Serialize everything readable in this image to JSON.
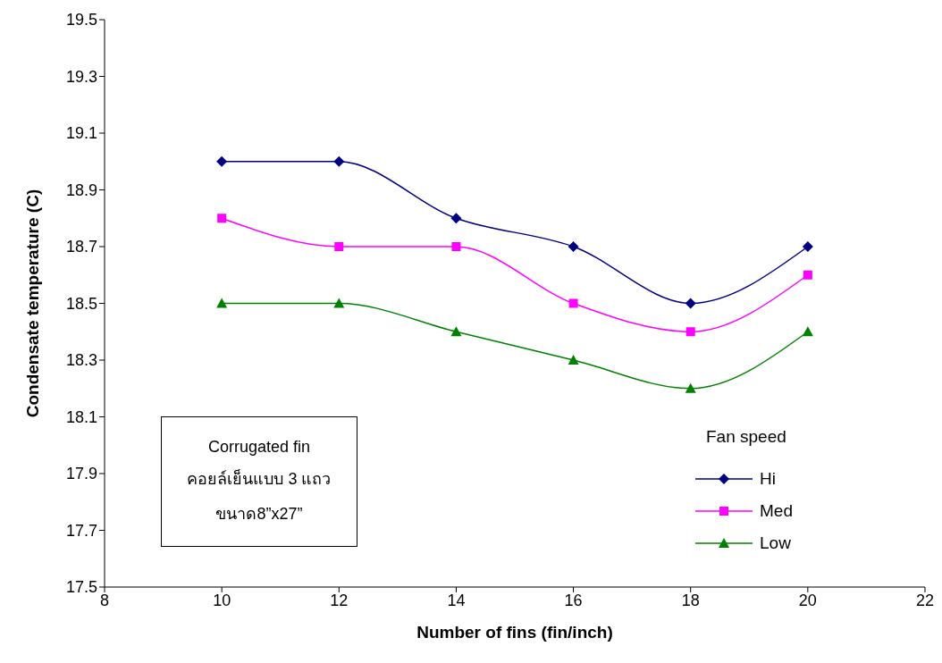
{
  "chart_data": {
    "type": "line",
    "xlabel": "Number of fins (fin/inch)",
    "ylabel": "Condensate temperature (C)",
    "legend_title": "Fan speed",
    "legend": "bottom right",
    "grid": false,
    "x": [
      10,
      12,
      14,
      16,
      18,
      20
    ],
    "xlim": [
      8,
      22
    ],
    "xticks": [
      8,
      10,
      12,
      14,
      16,
      18,
      20,
      22
    ],
    "ylim": [
      17.5,
      19.5
    ],
    "yticks": [
      17.5,
      17.7,
      17.9,
      18.1,
      18.3,
      18.5,
      18.7,
      18.9,
      19.1,
      19.3,
      19.5
    ],
    "series": [
      {
        "name": "Hi",
        "color": "#000080",
        "marker": "diamond",
        "values": [
          19.0,
          19.0,
          18.8,
          18.7,
          18.5,
          18.7
        ]
      },
      {
        "name": "Med",
        "color": "#ff00ff",
        "marker": "square",
        "values": [
          18.8,
          18.7,
          18.7,
          18.5,
          18.4,
          18.6
        ]
      },
      {
        "name": "Low",
        "color": "#008000",
        "marker": "triangle",
        "values": [
          18.5,
          18.5,
          18.4,
          18.3,
          18.2,
          18.4
        ]
      }
    ],
    "annotations": [
      "Corrugated fin",
      "คอยล์เย็นแบบ 3 แถว",
      "ขนาด8”x27”"
    ]
  }
}
